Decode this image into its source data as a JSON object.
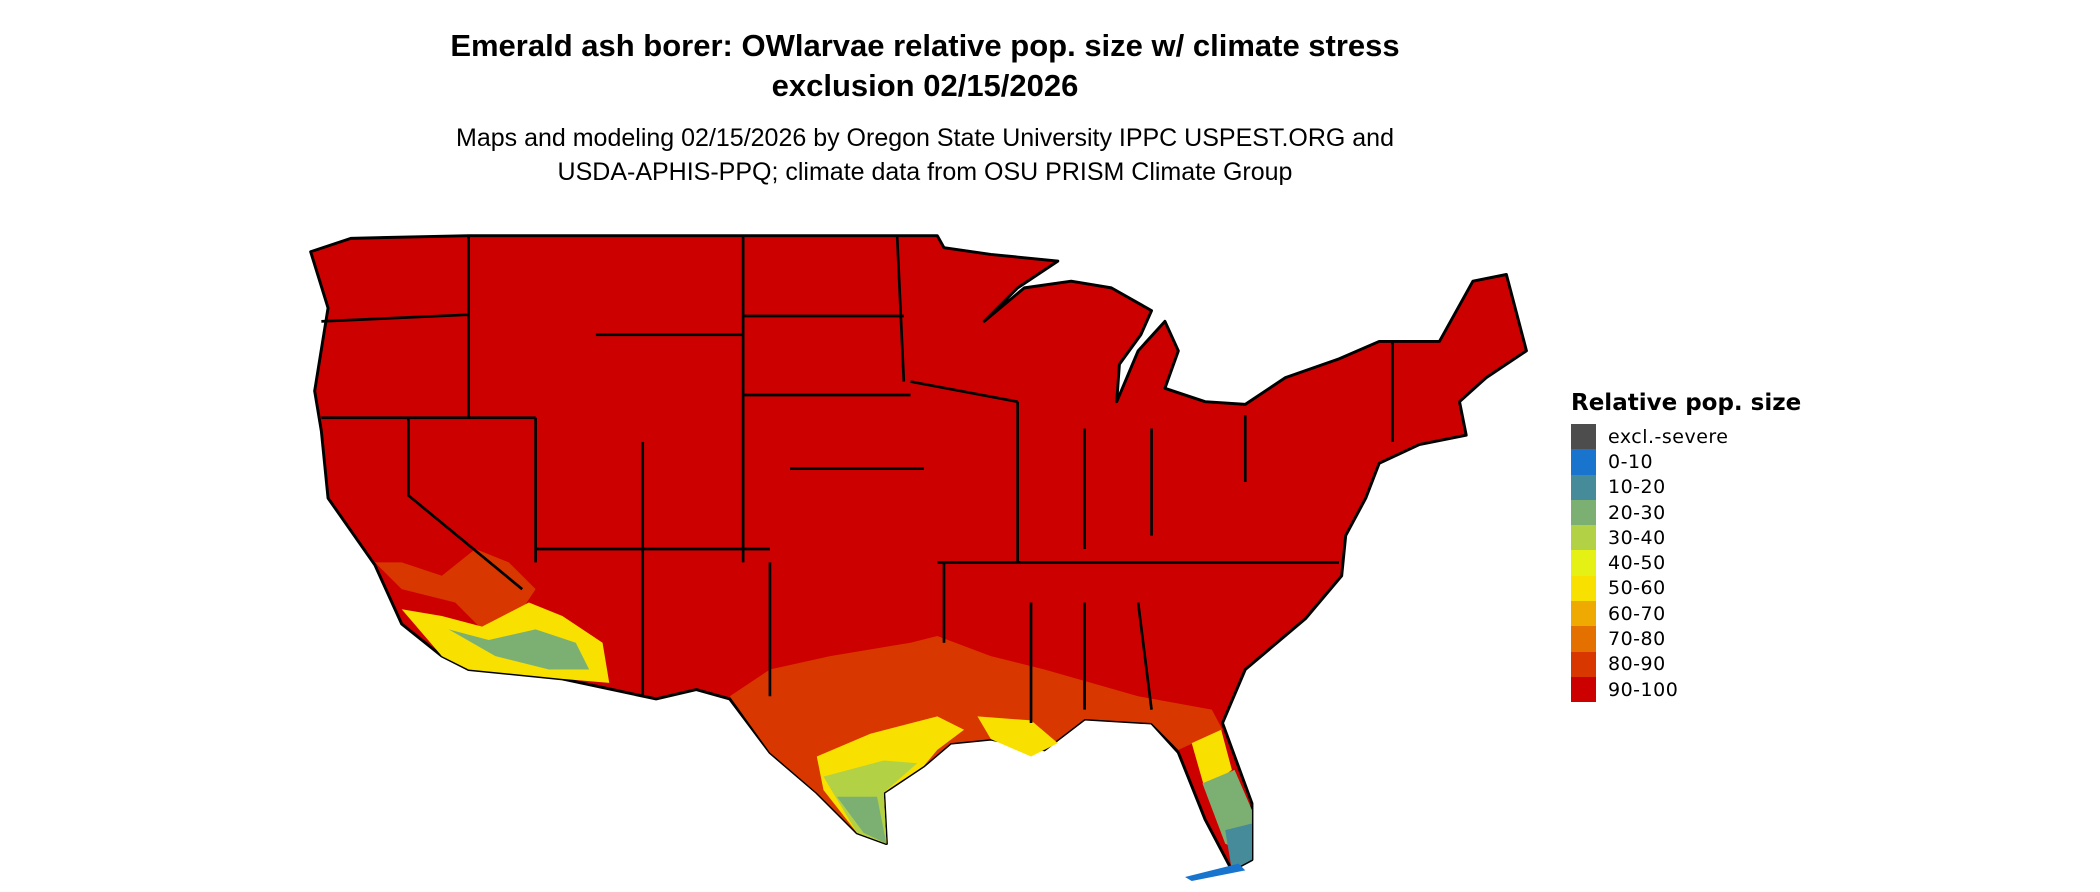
{
  "title_line1": "Emerald ash borer: OWlarvae relative pop. size w/ climate stress",
  "title_line2": "exclusion 02/15/2026",
  "subtitle_line1": "Maps and modeling 02/15/2026 by Oregon State University IPPC USPEST.ORG and",
  "subtitle_line2": "USDA-APHIS-PPQ; climate data from OSU PRISM Climate Group",
  "legend": {
    "title": "Relative pop. size",
    "items": [
      {
        "label": "excl.-severe",
        "color": "#4d4d4d"
      },
      {
        "label": "0-10",
        "color": "#1874cd"
      },
      {
        "label": "10-20",
        "color": "#458b9a"
      },
      {
        "label": "20-30",
        "color": "#7cb072"
      },
      {
        "label": "30-40",
        "color": "#b2d145"
      },
      {
        "label": "40-50",
        "color": "#e5f014"
      },
      {
        "label": "50-60",
        "color": "#f8e000"
      },
      {
        "label": "60-70",
        "color": "#eeaa00"
      },
      {
        "label": "70-80",
        "color": "#e47000"
      },
      {
        "label": "80-90",
        "color": "#d83800"
      },
      {
        "label": "90-100",
        "color": "#cd0000"
      }
    ]
  },
  "map": {
    "region": "Contiguous United States",
    "dominant_class": "90-100"
  }
}
